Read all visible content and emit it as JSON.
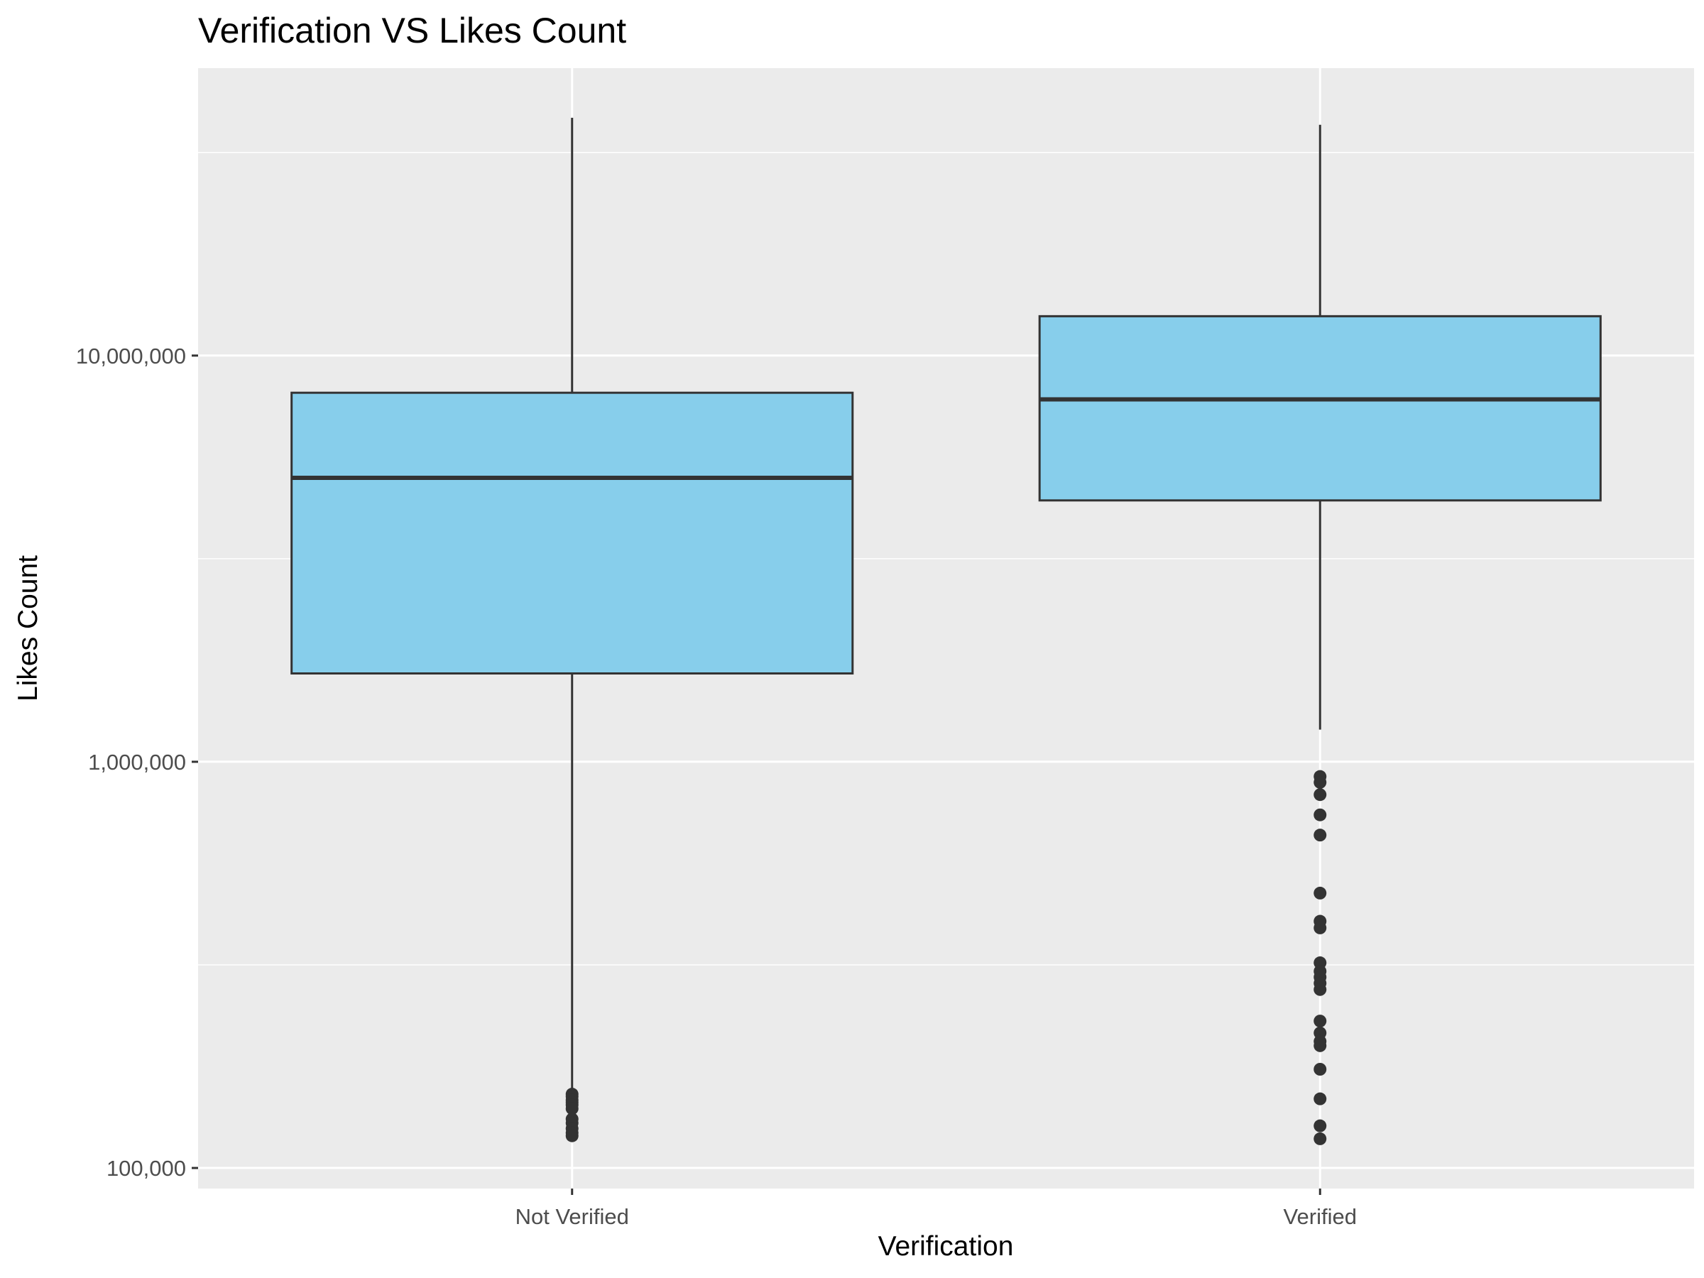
{
  "chart_data": {
    "type": "boxplot",
    "title": "Verification VS Likes Count",
    "xlabel": "Verification",
    "ylabel": "Likes Count",
    "y_scale": "log10",
    "ylim": [
      89000,
      51000000
    ],
    "y_ticks": [
      {
        "value": 100000,
        "label": "100,000"
      },
      {
        "value": 1000000,
        "label": "1,000,000"
      },
      {
        "value": 10000000,
        "label": "10,000,000"
      }
    ],
    "y_minor_ticks": [
      316228,
      3162278,
      31622777
    ],
    "grid": true,
    "categories": [
      "Not Verified",
      "Verified"
    ],
    "series": [
      {
        "whisker_low": 155000,
        "q1": 1650000,
        "median": 5000000,
        "q3": 8100000,
        "whisker_high": 38500000,
        "outliers": [
          152000,
          150000,
          147000,
          145000,
          143000,
          140000,
          132000,
          129000,
          125000,
          122000,
          120000
        ]
      },
      {
        "whisker_low": 1200000,
        "q1": 4400000,
        "median": 7800000,
        "q3": 12500000,
        "whisker_high": 37000000,
        "outliers": [
          920000,
          890000,
          830000,
          740000,
          660000,
          475000,
          405000,
          390000,
          320000,
          305000,
          295000,
          285000,
          275000,
          230000,
          215000,
          205000,
          200000,
          175000,
          148000,
          127000,
          118000
        ]
      }
    ],
    "colors": {
      "box_fill": "#87CEEB",
      "box_stroke": "#333333",
      "panel_background": "#EBEBEB",
      "grid_line": "#FFFFFF",
      "tick_text": "#4D4D4D"
    }
  }
}
